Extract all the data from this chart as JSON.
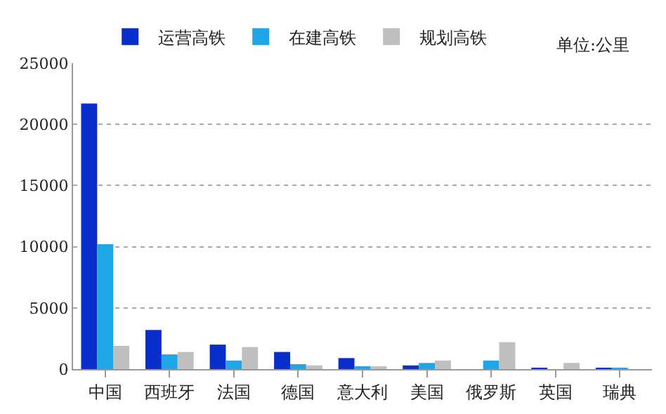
{
  "chart_data": {
    "type": "bar",
    "categories": [
      "中国",
      "西班牙",
      "法国",
      "德国",
      "意大利",
      "美国",
      "俄罗斯",
      "英国",
      "瑞典"
    ],
    "series": [
      {
        "name": "运营高铁",
        "color": "#0a2ecc",
        "values": [
          21700,
          3200,
          2000,
          1400,
          900,
          300,
          0,
          100,
          100
        ]
      },
      {
        "name": "在建高铁",
        "color": "#1ea6e6",
        "values": [
          10200,
          1200,
          700,
          400,
          200,
          500,
          700,
          0,
          100
        ]
      },
      {
        "name": "规划高铁",
        "color": "#bfbfbf",
        "values": [
          1900,
          1400,
          1800,
          300,
          200,
          700,
          2200,
          500,
          0
        ]
      }
    ],
    "annotations": [
      "单位:公里"
    ],
    "ylim": [
      0,
      25000
    ],
    "yticks": [
      0,
      5000,
      10000,
      15000,
      20000,
      25000
    ],
    "grid": "y",
    "legend": "top"
  }
}
